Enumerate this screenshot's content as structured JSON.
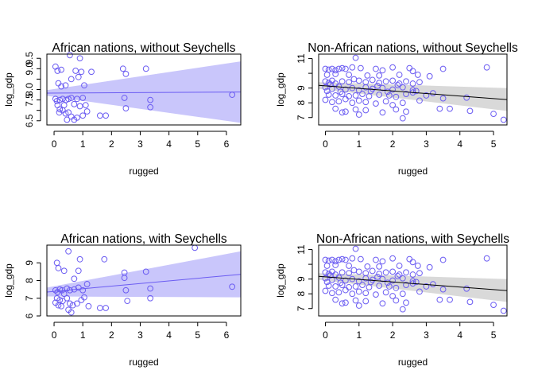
{
  "chart_data": [
    {
      "type": "scatter",
      "title": "African nations, without Seychells",
      "xlabel": "rugged",
      "ylabel": "log_gdp",
      "xlim": [
        -0.25,
        6.5
      ],
      "ylim": [
        6.3,
        9.7
      ],
      "xticks": [
        0,
        1,
        2,
        3,
        4,
        5,
        6
      ],
      "yticks": [
        6.5,
        7.0,
        7.5,
        8.0,
        8.5,
        9.0,
        9.5
      ],
      "ytick_labels": [
        "6.5",
        "",
        "7.5",
        "8.0",
        "",
        "9.0",
        "9.5"
      ],
      "point_color": "#6b5cf2",
      "line_color": "#6b5cf2",
      "band_color": "#c9c6fb",
      "fit": {
        "x": [
          -0.25,
          6.5
        ],
        "y": [
          7.83,
          7.88
        ],
        "lower": [
          7.7,
          6.4
        ],
        "upper": [
          7.97,
          9.35
        ]
      },
      "points": [
        [
          0.05,
          9.1
        ],
        [
          0.12,
          8.9
        ],
        [
          0.25,
          8.95
        ],
        [
          0.55,
          9.65
        ],
        [
          0.9,
          9.5
        ],
        [
          1.3,
          8.85
        ],
        [
          0.15,
          8.3
        ],
        [
          0.25,
          8.15
        ],
        [
          0.4,
          8.2
        ],
        [
          0.6,
          8.5
        ],
        [
          0.75,
          8.9
        ],
        [
          0.85,
          8.6
        ],
        [
          0.95,
          8.85
        ],
        [
          1.05,
          8.2
        ],
        [
          2.4,
          9.0
        ],
        [
          3.2,
          9.0
        ],
        [
          2.5,
          8.75
        ],
        [
          0.05,
          7.55
        ],
        [
          0.1,
          7.45
        ],
        [
          0.2,
          7.5
        ],
        [
          0.3,
          7.55
        ],
        [
          0.35,
          7.25
        ],
        [
          0.42,
          7.5
        ],
        [
          0.5,
          7.55
        ],
        [
          0.6,
          7.6
        ],
        [
          0.7,
          7.3
        ],
        [
          0.8,
          7.55
        ],
        [
          0.9,
          7.2
        ],
        [
          1.0,
          7.6
        ],
        [
          1.1,
          7.25
        ],
        [
          2.45,
          7.6
        ],
        [
          2.5,
          7.1
        ],
        [
          3.35,
          7.5
        ],
        [
          3.35,
          7.15
        ],
        [
          6.2,
          7.75
        ],
        [
          0.12,
          7.25
        ],
        [
          0.2,
          7.05
        ],
        [
          0.3,
          7.0
        ],
        [
          0.4,
          6.85
        ],
        [
          0.5,
          6.9
        ],
        [
          0.6,
          6.7
        ],
        [
          0.7,
          6.55
        ],
        [
          0.8,
          6.65
        ],
        [
          1.0,
          6.75
        ],
        [
          1.15,
          6.95
        ],
        [
          1.6,
          6.75
        ],
        [
          1.8,
          6.75
        ],
        [
          0.45,
          6.55
        ],
        [
          0.18,
          6.9
        ]
      ]
    },
    {
      "type": "scatter",
      "title": "Non-African nations, without Seychells",
      "xlabel": "rugged",
      "ylabel": "log_gdp",
      "xlim": [
        -0.2,
        5.4
      ],
      "ylim": [
        6.5,
        11.3
      ],
      "xticks": [
        0,
        1,
        2,
        3,
        4,
        5
      ],
      "yticks": [
        7,
        8,
        9,
        10,
        11
      ],
      "ytick_labels": [
        "7",
        "8",
        "9",
        "",
        "11"
      ],
      "point_color": "#6b5cf2",
      "line_color": "#000000",
      "band_color": "#d9d9d9",
      "fit": {
        "x": [
          -0.2,
          5.4
        ],
        "y": [
          9.18,
          8.22
        ],
        "lower": [
          8.95,
          7.45
        ],
        "upper": [
          9.4,
          9.0
        ]
      },
      "points": [
        [
          0.0,
          10.3
        ],
        [
          0.1,
          10.25
        ],
        [
          0.2,
          10.3
        ],
        [
          0.3,
          10.2
        ],
        [
          0.4,
          10.3
        ],
        [
          0.5,
          10.35
        ],
        [
          0.6,
          10.3
        ],
        [
          0.8,
          10.4
        ],
        [
          1.05,
          10.35
        ],
        [
          1.5,
          10.3
        ],
        [
          1.7,
          10.2
        ],
        [
          2.0,
          10.4
        ],
        [
          2.5,
          10.35
        ],
        [
          2.6,
          10.15
        ],
        [
          3.5,
          10.3
        ],
        [
          4.8,
          10.4
        ],
        [
          0.9,
          11.05
        ],
        [
          0.05,
          9.9
        ],
        [
          0.3,
          9.95
        ],
        [
          0.7,
          9.9
        ],
        [
          1.25,
          9.85
        ],
        [
          1.6,
          9.85
        ],
        [
          2.2,
          9.9
        ],
        [
          2.75,
          9.9
        ],
        [
          3.1,
          9.8
        ],
        [
          0.0,
          9.45
        ],
        [
          0.1,
          9.35
        ],
        [
          0.2,
          9.5
        ],
        [
          0.3,
          9.3
        ],
        [
          0.5,
          9.45
        ],
        [
          0.7,
          9.4
        ],
        [
          0.85,
          9.6
        ],
        [
          1.0,
          9.5
        ],
        [
          1.2,
          9.4
        ],
        [
          1.4,
          9.55
        ],
        [
          1.6,
          9.35
        ],
        [
          1.8,
          9.45
        ],
        [
          2.0,
          9.5
        ],
        [
          2.2,
          9.3
        ],
        [
          2.4,
          9.45
        ],
        [
          2.6,
          9.3
        ],
        [
          2.8,
          9.4
        ],
        [
          0.0,
          9.05
        ],
        [
          0.2,
          8.95
        ],
        [
          0.4,
          9.1
        ],
        [
          0.6,
          8.9
        ],
        [
          0.8,
          9.0
        ],
        [
          1.0,
          8.85
        ],
        [
          1.2,
          9.05
        ],
        [
          1.4,
          8.95
        ],
        [
          1.7,
          9.0
        ],
        [
          2.0,
          8.9
        ],
        [
          2.3,
          9.05
        ],
        [
          2.6,
          8.85
        ],
        [
          0.1,
          8.55
        ],
        [
          0.3,
          8.5
        ],
        [
          0.5,
          8.6
        ],
        [
          0.7,
          8.45
        ],
        [
          0.9,
          8.5
        ],
        [
          1.1,
          8.6
        ],
        [
          1.3,
          8.45
        ],
        [
          1.6,
          8.55
        ],
        [
          1.9,
          8.5
        ],
        [
          2.1,
          8.4
        ],
        [
          2.4,
          8.6
        ],
        [
          2.6,
          8.7
        ],
        [
          3.0,
          8.5
        ],
        [
          3.5,
          8.3
        ],
        [
          4.2,
          8.35
        ],
        [
          0.0,
          8.2
        ],
        [
          0.2,
          8.05
        ],
        [
          0.4,
          8.1
        ],
        [
          0.6,
          8.25
        ],
        [
          0.8,
          8.0
        ],
        [
          1.0,
          8.15
        ],
        [
          1.2,
          8.05
        ],
        [
          1.5,
          7.95
        ],
        [
          1.8,
          8.1
        ],
        [
          2.0,
          7.85
        ],
        [
          2.3,
          8.0
        ],
        [
          2.8,
          8.15
        ],
        [
          0.3,
          7.6
        ],
        [
          0.6,
          7.4
        ],
        [
          0.9,
          7.55
        ],
        [
          1.2,
          7.5
        ],
        [
          1.7,
          7.35
        ],
        [
          2.1,
          7.55
        ],
        [
          2.4,
          7.4
        ],
        [
          3.4,
          7.6
        ],
        [
          0.5,
          7.35
        ],
        [
          1.0,
          7.2
        ],
        [
          2.3,
          6.95
        ],
        [
          4.3,
          7.45
        ],
        [
          5.0,
          7.25
        ],
        [
          5.3,
          6.85
        ],
        [
          0.05,
          8.8
        ],
        [
          0.45,
          8.75
        ],
        [
          1.35,
          8.8
        ],
        [
          1.85,
          8.75
        ],
        [
          2.7,
          8.8
        ],
        [
          3.2,
          8.65
        ],
        [
          3.7,
          7.6
        ],
        [
          1.55,
          9.15
        ],
        [
          0.15,
          9.25
        ],
        [
          2.15,
          9.2
        ]
      ]
    },
    {
      "type": "scatter",
      "title": "African nations, with Seychells",
      "xlabel": "rugged",
      "ylabel": "log_gdp",
      "xlim": [
        -0.25,
        6.5
      ],
      "ylim": [
        6.0,
        10.0
      ],
      "xticks": [
        0,
        1,
        2,
        3,
        4,
        5,
        6
      ],
      "yticks": [
        6,
        7,
        8,
        9
      ],
      "ytick_labels": [
        "6",
        "7",
        "8",
        "9"
      ],
      "point_color": "#6b5cf2",
      "line_color": "#6b5cf2",
      "band_color": "#c9c6fb",
      "fit": {
        "x": [
          -0.25,
          6.5
        ],
        "y": [
          7.35,
          8.35
        ],
        "lower": [
          7.1,
          7.05
        ],
        "upper": [
          7.6,
          9.65
        ]
      },
      "points": [
        [
          0.1,
          9.0
        ],
        [
          0.15,
          8.7
        ],
        [
          0.5,
          9.65
        ],
        [
          0.9,
          9.2
        ],
        [
          1.75,
          9.2
        ],
        [
          0.35,
          8.55
        ],
        [
          0.85,
          8.55
        ],
        [
          0.05,
          7.45
        ],
        [
          0.12,
          7.35
        ],
        [
          0.2,
          7.5
        ],
        [
          0.28,
          7.45
        ],
        [
          0.35,
          7.25
        ],
        [
          0.45,
          7.55
        ],
        [
          0.55,
          7.45
        ],
        [
          0.7,
          7.5
        ],
        [
          0.85,
          7.6
        ],
        [
          1.0,
          7.45
        ],
        [
          1.15,
          7.8
        ],
        [
          2.45,
          8.45
        ],
        [
          3.2,
          8.5
        ],
        [
          2.45,
          8.15
        ],
        [
          3.35,
          7.55
        ],
        [
          2.5,
          7.45
        ],
        [
          3.35,
          7.0
        ],
        [
          4.9,
          9.85
        ],
        [
          6.2,
          7.65
        ],
        [
          0.1,
          7.0
        ],
        [
          0.2,
          6.9
        ],
        [
          0.3,
          6.85
        ],
        [
          0.45,
          7.0
        ],
        [
          0.55,
          6.7
        ],
        [
          0.65,
          6.6
        ],
        [
          0.8,
          6.7
        ],
        [
          0.95,
          6.9
        ],
        [
          1.05,
          7.05
        ],
        [
          1.2,
          6.55
        ],
        [
          1.6,
          6.45
        ],
        [
          1.8,
          6.45
        ],
        [
          0.5,
          6.35
        ],
        [
          0.6,
          6.2
        ],
        [
          0.05,
          6.75
        ],
        [
          0.15,
          6.6
        ],
        [
          0.25,
          6.55
        ],
        [
          0.7,
          8.1
        ],
        [
          2.55,
          6.85
        ]
      ]
    },
    {
      "type": "scatter",
      "title": "Non-African nations, with Seychells",
      "xlabel": "rugged",
      "ylabel": "log_gdp",
      "xlim": [
        -0.2,
        5.4
      ],
      "ylim": [
        6.5,
        11.3
      ],
      "xticks": [
        0,
        1,
        2,
        3,
        4,
        5
      ],
      "yticks": [
        7,
        8,
        9,
        10,
        11
      ],
      "ytick_labels": [
        "7",
        "8",
        "9",
        "",
        "11"
      ],
      "point_color": "#6b5cf2",
      "line_color": "#000000",
      "band_color": "#d9d9d9",
      "fit": {
        "x": [
          -0.2,
          5.4
        ],
        "y": [
          9.18,
          8.22
        ],
        "lower": [
          8.95,
          7.45
        ],
        "upper": [
          9.4,
          9.0
        ]
      },
      "points": [
        [
          0.0,
          10.3
        ],
        [
          0.1,
          10.25
        ],
        [
          0.2,
          10.3
        ],
        [
          0.3,
          10.2
        ],
        [
          0.4,
          10.3
        ],
        [
          0.5,
          10.35
        ],
        [
          0.6,
          10.3
        ],
        [
          0.8,
          10.4
        ],
        [
          1.05,
          10.35
        ],
        [
          1.5,
          10.3
        ],
        [
          1.7,
          10.2
        ],
        [
          2.0,
          10.4
        ],
        [
          2.5,
          10.35
        ],
        [
          2.6,
          10.15
        ],
        [
          3.5,
          10.3
        ],
        [
          4.8,
          10.4
        ],
        [
          0.9,
          11.05
        ],
        [
          0.05,
          9.9
        ],
        [
          0.3,
          9.95
        ],
        [
          0.7,
          9.9
        ],
        [
          1.25,
          9.85
        ],
        [
          1.6,
          9.85
        ],
        [
          2.2,
          9.9
        ],
        [
          2.75,
          9.9
        ],
        [
          3.1,
          9.8
        ],
        [
          0.0,
          9.45
        ],
        [
          0.1,
          9.35
        ],
        [
          0.2,
          9.5
        ],
        [
          0.3,
          9.3
        ],
        [
          0.5,
          9.45
        ],
        [
          0.7,
          9.4
        ],
        [
          0.85,
          9.6
        ],
        [
          1.0,
          9.5
        ],
        [
          1.2,
          9.4
        ],
        [
          1.4,
          9.55
        ],
        [
          1.6,
          9.35
        ],
        [
          1.8,
          9.45
        ],
        [
          2.0,
          9.5
        ],
        [
          2.2,
          9.3
        ],
        [
          2.4,
          9.45
        ],
        [
          2.6,
          9.3
        ],
        [
          2.8,
          9.4
        ],
        [
          0.0,
          9.05
        ],
        [
          0.2,
          8.95
        ],
        [
          0.4,
          9.1
        ],
        [
          0.6,
          8.9
        ],
        [
          0.8,
          9.0
        ],
        [
          1.0,
          8.85
        ],
        [
          1.2,
          9.05
        ],
        [
          1.4,
          8.95
        ],
        [
          1.7,
          9.0
        ],
        [
          2.0,
          8.9
        ],
        [
          2.3,
          9.05
        ],
        [
          2.6,
          8.85
        ],
        [
          0.1,
          8.55
        ],
        [
          0.3,
          8.5
        ],
        [
          0.5,
          8.6
        ],
        [
          0.7,
          8.45
        ],
        [
          0.9,
          8.5
        ],
        [
          1.1,
          8.6
        ],
        [
          1.3,
          8.45
        ],
        [
          1.6,
          8.55
        ],
        [
          1.9,
          8.5
        ],
        [
          2.1,
          8.4
        ],
        [
          2.4,
          8.6
        ],
        [
          2.6,
          8.7
        ],
        [
          3.0,
          8.5
        ],
        [
          3.5,
          8.3
        ],
        [
          4.2,
          8.35
        ],
        [
          0.0,
          8.2
        ],
        [
          0.2,
          8.05
        ],
        [
          0.4,
          8.1
        ],
        [
          0.6,
          8.25
        ],
        [
          0.8,
          8.0
        ],
        [
          1.0,
          8.15
        ],
        [
          1.2,
          8.05
        ],
        [
          1.5,
          7.95
        ],
        [
          1.8,
          8.1
        ],
        [
          2.0,
          7.85
        ],
        [
          2.3,
          8.0
        ],
        [
          2.8,
          8.15
        ],
        [
          0.3,
          7.6
        ],
        [
          0.6,
          7.4
        ],
        [
          0.9,
          7.55
        ],
        [
          1.2,
          7.5
        ],
        [
          1.7,
          7.35
        ],
        [
          2.1,
          7.55
        ],
        [
          2.4,
          7.4
        ],
        [
          3.4,
          7.6
        ],
        [
          0.5,
          7.35
        ],
        [
          1.0,
          7.2
        ],
        [
          2.3,
          6.95
        ],
        [
          4.3,
          7.45
        ],
        [
          5.0,
          7.25
        ],
        [
          5.3,
          6.85
        ],
        [
          0.05,
          8.8
        ],
        [
          0.45,
          8.75
        ],
        [
          1.35,
          8.8
        ],
        [
          1.85,
          8.75
        ],
        [
          2.7,
          8.8
        ],
        [
          3.2,
          8.65
        ],
        [
          3.7,
          7.6
        ],
        [
          1.55,
          9.15
        ],
        [
          0.15,
          9.25
        ],
        [
          2.15,
          9.2
        ]
      ]
    }
  ]
}
